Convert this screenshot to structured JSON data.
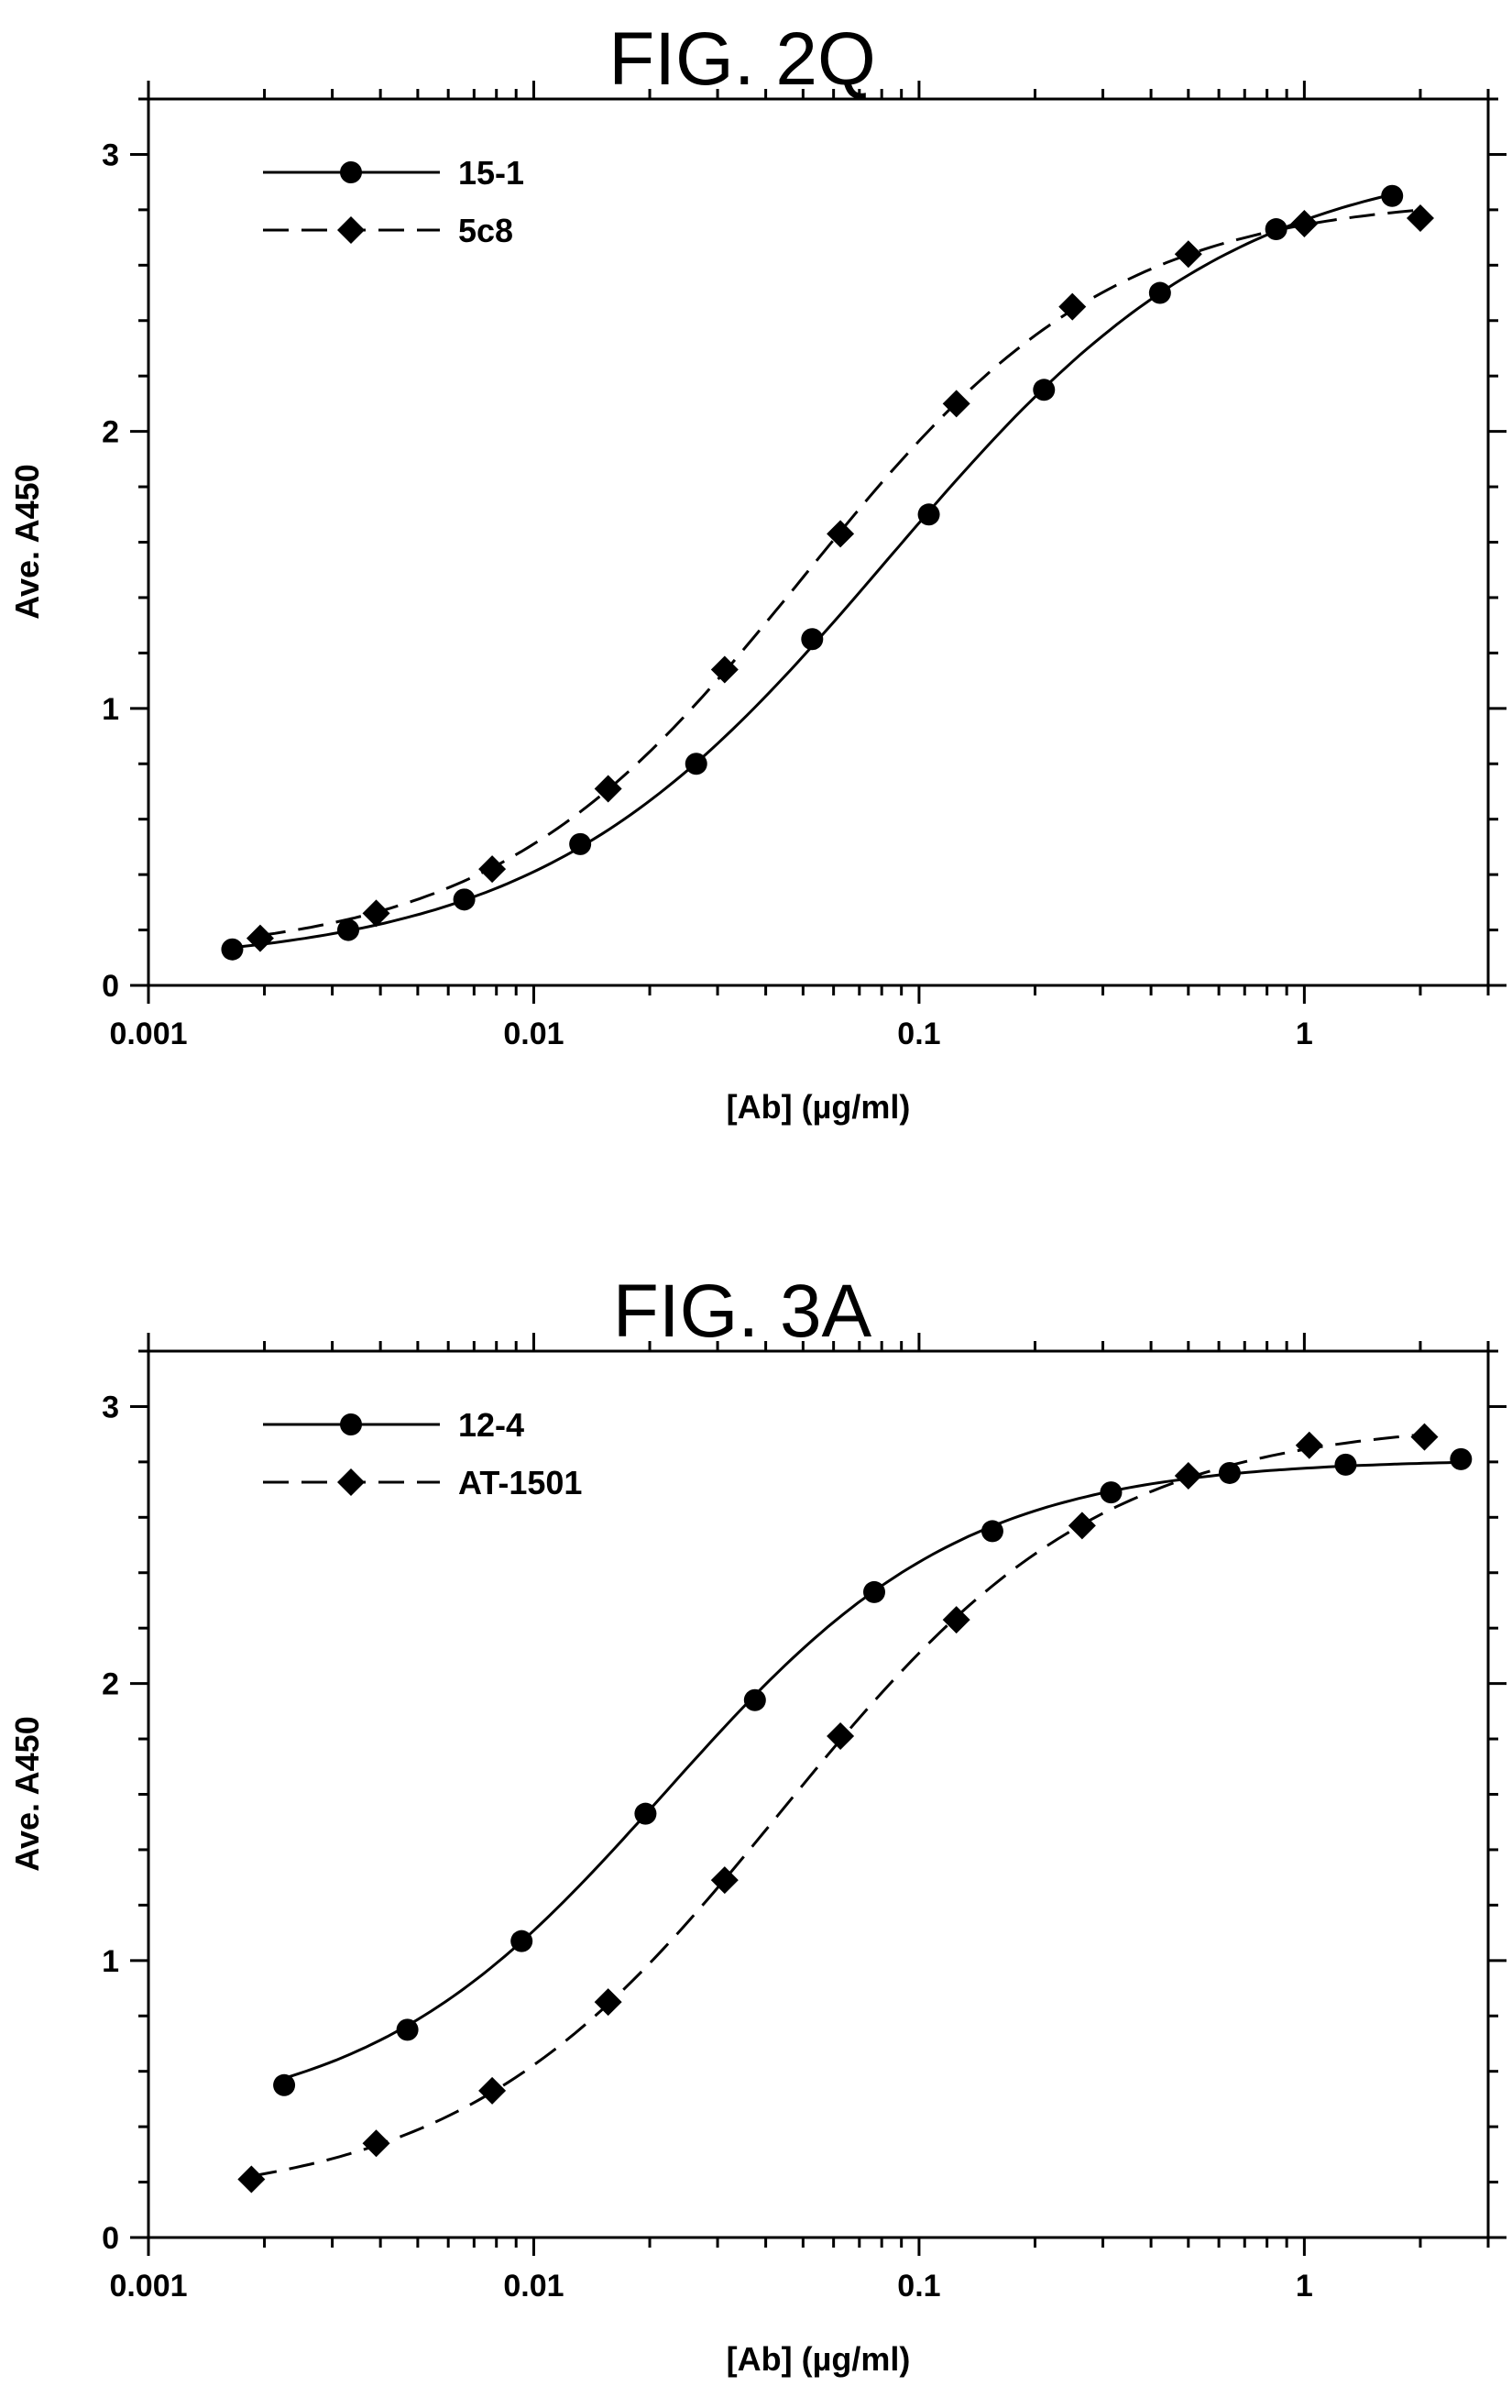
{
  "figures": [
    {
      "fig_label": "FIG. 2Q",
      "xlabel": "[Ab]  (µg/ml)",
      "ylabel": "Ave. A450",
      "legend": [
        {
          "name": "15-1",
          "marker": "circle",
          "line": "solid"
        },
        {
          "name": "5c8",
          "marker": "diamond",
          "line": "dashed"
        }
      ]
    },
    {
      "fig_label": "FIG. 3A",
      "xlabel": "[Ab]  (µg/ml)",
      "ylabel": "Ave. A450",
      "legend": [
        {
          "name": "12-4",
          "marker": "circle",
          "line": "solid"
        },
        {
          "name": "AT-1501",
          "marker": "diamond",
          "line": "dashed"
        }
      ]
    }
  ],
  "chart_data": [
    {
      "type": "scatter",
      "title": "FIG. 2Q",
      "xlabel": "[Ab]  (µg/ml)",
      "ylabel": "Ave. A450",
      "xscale": "log",
      "xlim": [
        0.001,
        3.0
      ],
      "ylim": [
        0,
        3.2
      ],
      "x_ticks": [
        0.001,
        0.01,
        0.1,
        1
      ],
      "x_tick_labels": [
        "0.001",
        "0.01",
        "0.1",
        "1"
      ],
      "y_ticks": [
        0,
        1,
        2,
        3
      ],
      "y_tick_labels": [
        "0",
        "1",
        "2",
        "3"
      ],
      "legend_position": "top-left",
      "grid": false,
      "series": [
        {
          "name": "15-1",
          "marker": "circle",
          "line": "solid",
          "x": [
            0.00165,
            0.0033,
            0.0066,
            0.0132,
            0.0264,
            0.0528,
            0.106,
            0.211,
            0.422,
            0.845,
            1.69
          ],
          "y": [
            0.13,
            0.2,
            0.31,
            0.51,
            0.8,
            1.25,
            1.7,
            2.15,
            2.5,
            2.73,
            2.85
          ]
        },
        {
          "name": "5c8",
          "marker": "diamond",
          "line": "dashed",
          "x": [
            0.00195,
            0.0039,
            0.0078,
            0.0156,
            0.0313,
            0.0625,
            0.125,
            0.25,
            0.5,
            1.0,
            2.0
          ],
          "y": [
            0.17,
            0.26,
            0.42,
            0.71,
            1.14,
            1.63,
            2.1,
            2.45,
            2.64,
            2.75,
            2.77
          ]
        }
      ]
    },
    {
      "type": "scatter",
      "title": "FIG. 3A",
      "xlabel": "[Ab]  (µg/ml)",
      "ylabel": "Ave. A450",
      "xscale": "log",
      "xlim": [
        0.001,
        3.0
      ],
      "ylim": [
        0,
        3.2
      ],
      "x_ticks": [
        0.001,
        0.01,
        0.1,
        1
      ],
      "x_tick_labels": [
        "0.001",
        "0.01",
        "0.1",
        "1"
      ],
      "y_ticks": [
        0,
        1,
        2,
        3
      ],
      "y_tick_labels": [
        "0",
        "1",
        "2",
        "3"
      ],
      "legend_position": "top-left",
      "grid": false,
      "series": [
        {
          "name": "12-4",
          "marker": "circle",
          "line": "solid",
          "x": [
            0.00225,
            0.0047,
            0.0093,
            0.0195,
            0.0375,
            0.0765,
            0.155,
            0.315,
            0.64,
            1.28,
            2.55
          ],
          "y": [
            0.55,
            0.75,
            1.07,
            1.53,
            1.94,
            2.33,
            2.55,
            2.69,
            2.76,
            2.79,
            2.81
          ]
        },
        {
          "name": "AT-1501",
          "marker": "diamond",
          "line": "dashed",
          "x": [
            0.00185,
            0.0039,
            0.0078,
            0.0156,
            0.0313,
            0.0625,
            0.125,
            0.265,
            0.5,
            1.03,
            2.05
          ],
          "y": [
            0.21,
            0.34,
            0.53,
            0.85,
            1.29,
            1.81,
            2.23,
            2.57,
            2.75,
            2.86,
            2.89
          ]
        }
      ]
    }
  ]
}
